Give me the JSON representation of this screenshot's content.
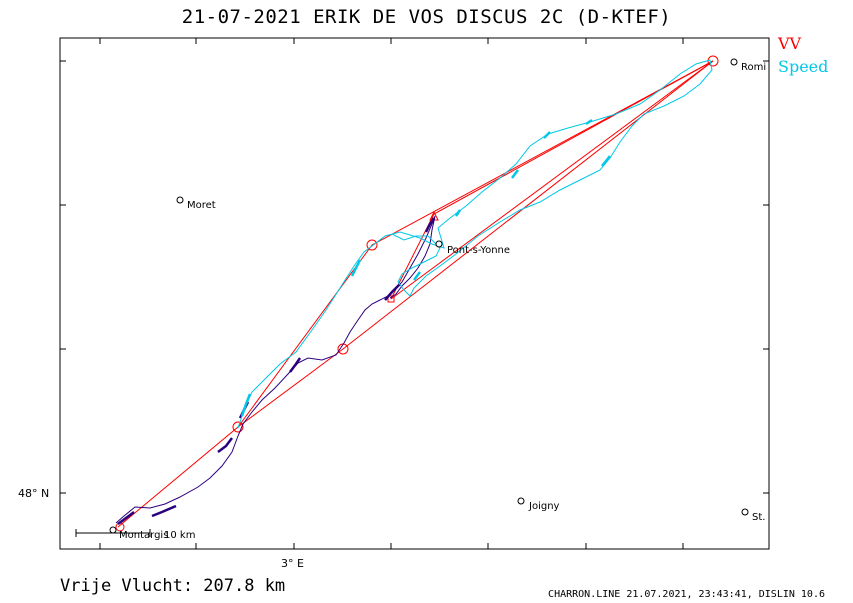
{
  "title": "21-07-2021   ERIK DE VOS   DISCUS 2C (D-KTEF)",
  "legend": {
    "vv": "VV",
    "speed": "Speed"
  },
  "colors": {
    "task": "#ff0000",
    "speed": "#00c8e6",
    "track": "#2a0080",
    "frame": "#000000"
  },
  "axes": {
    "lat_label": "48° N",
    "lon_label": "3° E"
  },
  "scale_bar": {
    "label": "10  km"
  },
  "places": [
    {
      "name": "Moret"
    },
    {
      "name": "Pont-s-Yonne"
    },
    {
      "name": "Joigny"
    },
    {
      "name": "Montargis"
    },
    {
      "name": "Romi"
    },
    {
      "name": "St."
    }
  ],
  "distance": "Vrije Vlucht:  207.8 km",
  "footer": "CHARRON.LINE 21.07.2021, 23:43:41, DISLIN 10.6"
}
